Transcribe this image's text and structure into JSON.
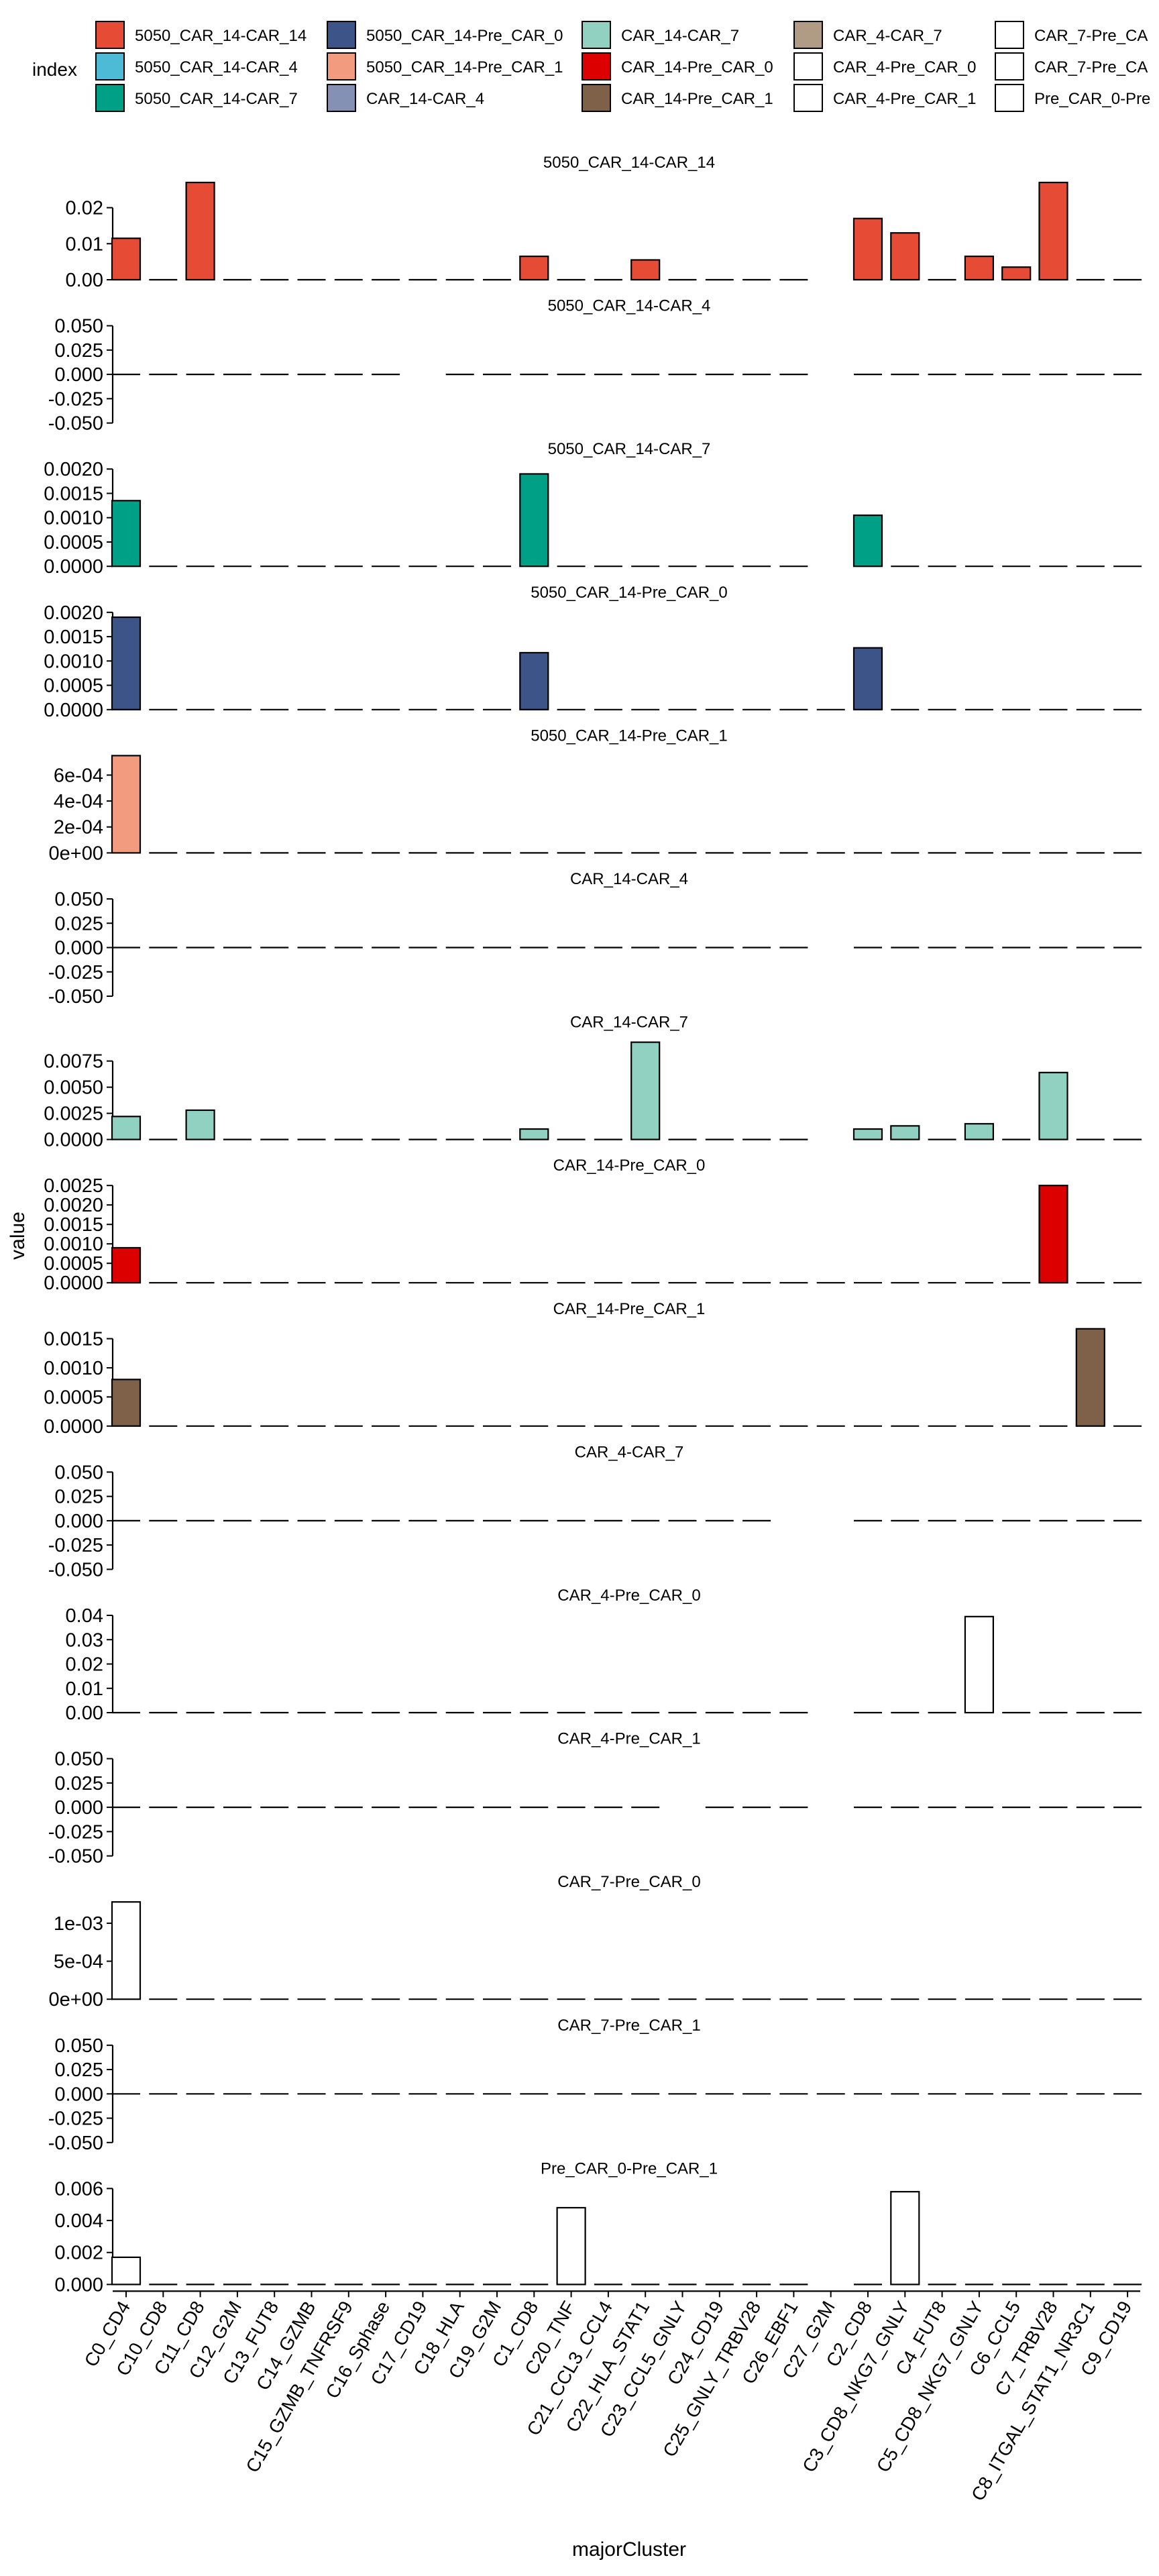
{
  "legend": {
    "title": "index",
    "items": [
      {
        "label": "5050_CAR_14-CAR_14",
        "color": "#E64B35"
      },
      {
        "label": "5050_CAR_14-CAR_4",
        "color": "#4DBBD5"
      },
      {
        "label": "5050_CAR_14-CAR_7",
        "color": "#00A087"
      },
      {
        "label": "5050_CAR_14-Pre_CAR_0",
        "color": "#3C5488"
      },
      {
        "label": "5050_CAR_14-Pre_CAR_1",
        "color": "#F39B7F"
      },
      {
        "label": "CAR_14-CAR_4",
        "color": "#8491B4"
      },
      {
        "label": "CAR_14-CAR_7",
        "color": "#91D1C2"
      },
      {
        "label": "CAR_14-Pre_CAR_0",
        "color": "#DC0000"
      },
      {
        "label": "CAR_14-Pre_CAR_1",
        "color": "#7E6148"
      },
      {
        "label": "CAR_4-CAR_7",
        "color": "#B09C85"
      },
      {
        "label": "CAR_4-Pre_CAR_0",
        "color": "#FFFFFF"
      },
      {
        "label": "CAR_4-Pre_CAR_1",
        "color": "#FFFFFF"
      },
      {
        "label": "CAR_7-Pre_CA",
        "color": "#FFFFFF"
      },
      {
        "label": "CAR_7-Pre_CA",
        "color": "#FFFFFF"
      },
      {
        "label": "Pre_CAR_0-Pre",
        "color": "#FFFFFF"
      }
    ]
  },
  "chart_data": {
    "type": "bar",
    "xlabel": "majorCluster",
    "ylabel": "value",
    "categories": [
      "C0_CD4",
      "C10_CD8",
      "C11_CD8",
      "C12_G2M",
      "C13_FUT8",
      "C14_GZMB",
      "C15_GZMB_TNFRSF9",
      "C16_Sphase",
      "C17_CD19",
      "C18_HLA",
      "C19_G2M",
      "C1_CD8",
      "C20_TNF",
      "C21_CCL3_CCL4",
      "C22_HLA_STAT1",
      "C23_CCL5_GNLY",
      "C24_CD19",
      "C25_GNLY_TRBV28",
      "C26_EBF1",
      "C27_G2M",
      "C2_CD8",
      "C3_CD8_NKG7_GNLY",
      "C4_FUT8",
      "C5_CD8_NKG7_GNLY",
      "C6_CCL5",
      "C7_TRBV28",
      "C8_ITGAL_STAT1_NR3C1",
      "C9_CD19"
    ],
    "panels": [
      {
        "title": "5050_CAR_14-CAR_14",
        "color": "#E64B35",
        "ticks": [
          "0.00",
          "0.01",
          "0.02"
        ],
        "tick_values": [
          0,
          0.01,
          0.02
        ],
        "ylim": [
          0,
          0.027
        ],
        "values": [
          0.0115,
          0,
          0.027,
          0,
          0,
          0,
          0,
          0,
          0,
          0,
          0,
          0.0065,
          0,
          0,
          0.0055,
          0,
          0,
          0,
          0,
          null,
          0.017,
          0.013,
          0,
          0.0065,
          0.0035,
          0.027,
          0,
          0
        ]
      },
      {
        "title": "5050_CAR_14-CAR_4",
        "color": "#4DBBD5",
        "ticks": [
          "0.050",
          "0.025",
          "0.000",
          "-0.025",
          "-0.050"
        ],
        "tick_values": [
          0.05,
          0.025,
          0,
          -0.025,
          -0.05
        ],
        "ylim": [
          -0.05,
          0.05
        ],
        "values": [
          0,
          0,
          0,
          0,
          0,
          0,
          0,
          0,
          null,
          0,
          0,
          0,
          0,
          0,
          0,
          0,
          0,
          0,
          0,
          null,
          0,
          0,
          0,
          0,
          0,
          0,
          0,
          0
        ]
      },
      {
        "title": "5050_CAR_14-CAR_7",
        "color": "#00A087",
        "ticks": [
          "0.0020",
          "0.0015",
          "0.0010",
          "0.0005",
          "0.0000"
        ],
        "tick_values": [
          0.002,
          0.0015,
          0.001,
          0.0005,
          0
        ],
        "ylim": [
          0,
          0.002
        ],
        "values": [
          0.00135,
          0,
          0,
          0,
          0,
          0,
          0,
          0,
          0,
          0,
          0,
          0.0019,
          0,
          0,
          0,
          0,
          0,
          0,
          0,
          null,
          0.00105,
          0,
          0,
          0,
          0,
          0,
          0,
          0
        ]
      },
      {
        "title": "5050_CAR_14-Pre_CAR_0",
        "color": "#3C5488",
        "ticks": [
          "0.0020",
          "0.0015",
          "0.0010",
          "0.0005",
          "0.0000"
        ],
        "tick_values": [
          0.002,
          0.0015,
          0.001,
          0.0005,
          0
        ],
        "ylim": [
          0,
          0.002
        ],
        "values": [
          0.0019,
          0,
          0,
          0,
          0,
          0,
          0,
          0,
          0,
          0,
          0,
          0.00117,
          0,
          0,
          0,
          0,
          0,
          0,
          0,
          0,
          0.00127,
          0,
          0,
          0,
          0,
          0,
          0,
          0
        ]
      },
      {
        "title": "5050_CAR_14-Pre_CAR_1",
        "color": "#F39B7F",
        "ticks": [
          "6e-04",
          "4e-04",
          "2e-04",
          "0e+00"
        ],
        "tick_values": [
          0.0006,
          0.0004,
          0.0002,
          0
        ],
        "ylim": [
          0,
          0.00075
        ],
        "values": [
          0.00075,
          0,
          0,
          0,
          0,
          0,
          0,
          0,
          0,
          0,
          0,
          0,
          0,
          0,
          0,
          0,
          0,
          0,
          0,
          0,
          0,
          0,
          0,
          0,
          0,
          0,
          0,
          0
        ]
      },
      {
        "title": "CAR_14-CAR_4",
        "color": "#8491B4",
        "ticks": [
          "0.050",
          "0.025",
          "0.000",
          "-0.025",
          "-0.050"
        ],
        "tick_values": [
          0.05,
          0.025,
          0,
          -0.025,
          -0.05
        ],
        "ylim": [
          -0.05,
          0.05
        ],
        "values": [
          0,
          0,
          0,
          0,
          0,
          0,
          0,
          0,
          0,
          0,
          0,
          0,
          0,
          0,
          0,
          0,
          0,
          0,
          0,
          null,
          0,
          0,
          0,
          0,
          0,
          0,
          0,
          0
        ]
      },
      {
        "title": "CAR_14-CAR_7",
        "color": "#91D1C2",
        "ticks": [
          "0.0075",
          "0.0050",
          "0.0025",
          "0.0000"
        ],
        "tick_values": [
          0.0075,
          0.005,
          0.0025,
          0
        ],
        "ylim": [
          0,
          0.0093
        ],
        "values": [
          0.0022,
          0,
          0.0028,
          0,
          0,
          0,
          0,
          0,
          0,
          0,
          0,
          0.001,
          0,
          0,
          0.0093,
          0,
          0,
          0,
          0,
          null,
          0.001,
          0.0013,
          0,
          0.0015,
          0,
          0.0064,
          0,
          0
        ]
      },
      {
        "title": "CAR_14-Pre_CAR_0",
        "color": "#DC0000",
        "ticks": [
          "0.0025",
          "0.0020",
          "0.0015",
          "0.0010",
          "0.0005",
          "0.0000"
        ],
        "tick_values": [
          0.0025,
          0.002,
          0.0015,
          0.001,
          0.0005,
          0
        ],
        "ylim": [
          0,
          0.0025
        ],
        "values": [
          0.0009,
          0,
          0,
          0,
          0,
          0,
          0,
          0,
          0,
          0,
          0,
          0,
          0,
          0,
          0,
          0,
          0,
          0,
          0,
          0,
          0,
          0,
          0,
          0,
          0,
          0.0025,
          0,
          0
        ]
      },
      {
        "title": "CAR_14-Pre_CAR_1",
        "color": "#7E6148",
        "ticks": [
          "0.0015",
          "0.0010",
          "0.0005",
          "0.0000"
        ],
        "tick_values": [
          0.0015,
          0.001,
          0.0005,
          0
        ],
        "ylim": [
          0,
          0.00167
        ],
        "values": [
          0.0008,
          0,
          0,
          0,
          0,
          0,
          0,
          0,
          0,
          0,
          0,
          0,
          0,
          0,
          0,
          0,
          0,
          0,
          0,
          0,
          0,
          0,
          0,
          0,
          0,
          0,
          0.00167,
          0
        ]
      },
      {
        "title": "CAR_4-CAR_7",
        "color": "#B09C85",
        "ticks": [
          "0.050",
          "0.025",
          "0.000",
          "-0.025",
          "-0.050"
        ],
        "tick_values": [
          0.05,
          0.025,
          0,
          -0.025,
          -0.05
        ],
        "ylim": [
          -0.05,
          0.05
        ],
        "values": [
          0,
          0,
          0,
          0,
          0,
          0,
          0,
          0,
          0,
          0,
          0,
          0,
          0,
          0,
          0,
          0,
          0,
          0,
          null,
          null,
          0,
          0,
          0,
          0,
          0,
          0,
          0,
          0
        ]
      },
      {
        "title": "CAR_4-Pre_CAR_0",
        "color": "#FFFFFF",
        "ticks": [
          "0.04",
          "0.03",
          "0.02",
          "0.01",
          "0.00"
        ],
        "tick_values": [
          0.04,
          0.03,
          0.02,
          0.01,
          0
        ],
        "ylim": [
          0,
          0.04
        ],
        "values": [
          0,
          0,
          0,
          0,
          0,
          0,
          0,
          0,
          0,
          0,
          0,
          0,
          0,
          0,
          0,
          0,
          0,
          0,
          0,
          null,
          0,
          0,
          0,
          0.0395,
          0,
          0,
          0,
          0
        ]
      },
      {
        "title": "CAR_4-Pre_CAR_1",
        "color": "#FFFFFF",
        "ticks": [
          "0.050",
          "0.025",
          "0.000",
          "-0.025",
          "-0.050"
        ],
        "tick_values": [
          0.05,
          0.025,
          0,
          -0.025,
          -0.05
        ],
        "ylim": [
          -0.05,
          0.05
        ],
        "values": [
          0,
          0,
          0,
          0,
          0,
          0,
          0,
          0,
          0,
          0,
          0,
          0,
          0,
          0,
          0,
          null,
          0,
          0,
          0,
          null,
          0,
          0,
          0,
          0,
          0,
          0,
          0,
          0
        ]
      },
      {
        "title": "CAR_7-Pre_CAR_0",
        "color": "#FFFFFF",
        "ticks": [
          "1e-03",
          "5e-04",
          "0e+00"
        ],
        "tick_values": [
          0.001,
          0.0005,
          0
        ],
        "ylim": [
          0,
          0.00128
        ],
        "values": [
          0.00128,
          0,
          0,
          0,
          0,
          0,
          0,
          0,
          0,
          0,
          0,
          0,
          0,
          0,
          0,
          0,
          0,
          0,
          0,
          0,
          0,
          0,
          0,
          0,
          0,
          0,
          0,
          0
        ]
      },
      {
        "title": "CAR_7-Pre_CAR_1",
        "color": "#FFFFFF",
        "ticks": [
          "0.050",
          "0.025",
          "0.000",
          "-0.025",
          "-0.050"
        ],
        "tick_values": [
          0.05,
          0.025,
          0,
          -0.025,
          -0.05
        ],
        "ylim": [
          -0.05,
          0.05
        ],
        "values": [
          0,
          0,
          0,
          0,
          0,
          0,
          0,
          0,
          0,
          0,
          0,
          0,
          0,
          0,
          0,
          0,
          0,
          0,
          0,
          0,
          0,
          0,
          0,
          0,
          0,
          0,
          0,
          0
        ]
      },
      {
        "title": "Pre_CAR_0-Pre_CAR_1",
        "color": "#FFFFFF",
        "ticks": [
          "0.006",
          "0.004",
          "0.002",
          "0.000"
        ],
        "tick_values": [
          0.006,
          0.004,
          0.002,
          0
        ],
        "ylim": [
          0,
          0.006
        ],
        "values": [
          0.0017,
          0,
          0,
          0,
          0,
          0,
          0,
          0,
          0,
          0,
          0,
          0,
          0.0048,
          0,
          0,
          0,
          0,
          0,
          0,
          null,
          0,
          0.0058,
          0,
          0,
          0,
          0,
          0,
          0
        ]
      }
    ]
  }
}
